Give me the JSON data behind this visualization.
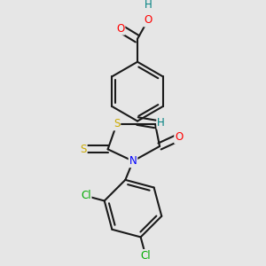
{
  "bg_color": "#e6e6e6",
  "bond_color": "#1a1a1a",
  "bond_width": 1.5,
  "atom_colors": {
    "O": "#ff0000",
    "H": "#008080",
    "S": "#ccaa00",
    "N": "#0000ff",
    "Cl": "#00aa00",
    "C": "#1a1a1a"
  },
  "font_size": 8.5,
  "fig_width": 3.0,
  "fig_height": 3.0,
  "dpi": 100
}
